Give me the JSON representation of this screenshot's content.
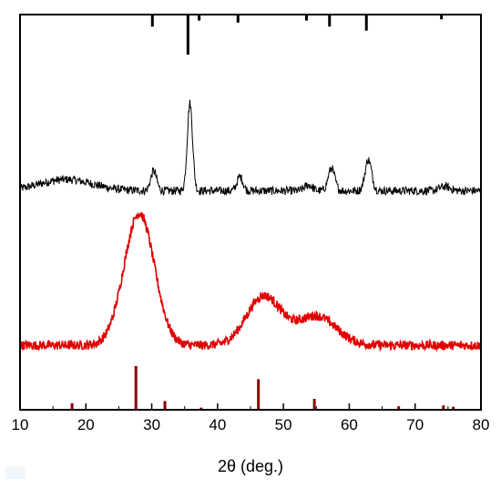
{
  "chart_data": {
    "type": "line",
    "xlabel": "2θ (deg.)",
    "xlim": [
      10,
      80
    ],
    "xticks": [
      "10",
      "20",
      "30",
      "40",
      "50",
      "60",
      "70",
      "80"
    ],
    "ylabel": "",
    "grid": false,
    "legend": "none",
    "series": [
      {
        "color": "#000000",
        "style": "reference-sticks-top",
        "peaks": [
          {
            "x": 30.1,
            "intensity": 0.3
          },
          {
            "x": 35.5,
            "intensity": 1.0
          },
          {
            "x": 37.2,
            "intensity": 0.15
          },
          {
            "x": 43.1,
            "intensity": 0.2
          },
          {
            "x": 53.5,
            "intensity": 0.15
          },
          {
            "x": 57.0,
            "intensity": 0.3
          },
          {
            "x": 62.6,
            "intensity": 0.4
          },
          {
            "x": 74.0,
            "intensity": 0.12
          }
        ]
      },
      {
        "color": "#000000",
        "style": "pattern",
        "baseline": 0.1,
        "noise": 0.03,
        "peaks": [
          {
            "x": 17.0,
            "height": 0.08,
            "width": 4.0
          },
          {
            "x": 30.3,
            "height": 0.14,
            "width": 0.45
          },
          {
            "x": 35.8,
            "height": 0.62,
            "width": 0.4
          },
          {
            "x": 43.4,
            "height": 0.1,
            "width": 0.45
          },
          {
            "x": 53.8,
            "height": 0.04,
            "width": 0.6
          },
          {
            "x": 57.3,
            "height": 0.16,
            "width": 0.5
          },
          {
            "x": 62.9,
            "height": 0.22,
            "width": 0.5
          },
          {
            "x": 74.5,
            "height": 0.03,
            "width": 0.8
          }
        ]
      },
      {
        "color": "#e00000",
        "style": "pattern",
        "baseline": 0.04,
        "noise": 0.035,
        "peaks": [
          {
            "x": 28.1,
            "height": 1.0,
            "width": 2.3
          },
          {
            "x": 47.0,
            "height": 0.37,
            "width": 2.6
          },
          {
            "x": 55.0,
            "height": 0.22,
            "width": 3.0
          }
        ]
      },
      {
        "color": "#8b0000",
        "style": "reference-sticks-bottom",
        "peaks": [
          {
            "x": 17.9,
            "intensity": 0.15
          },
          {
            "x": 27.6,
            "intensity": 1.0
          },
          {
            "x": 32.0,
            "intensity": 0.2
          },
          {
            "x": 37.5,
            "intensity": 0.05
          },
          {
            "x": 46.2,
            "intensity": 0.7
          },
          {
            "x": 54.7,
            "intensity": 0.25
          },
          {
            "x": 67.5,
            "intensity": 0.08
          },
          {
            "x": 74.3,
            "intensity": 0.1
          },
          {
            "x": 75.8,
            "intensity": 0.07
          }
        ]
      }
    ]
  }
}
